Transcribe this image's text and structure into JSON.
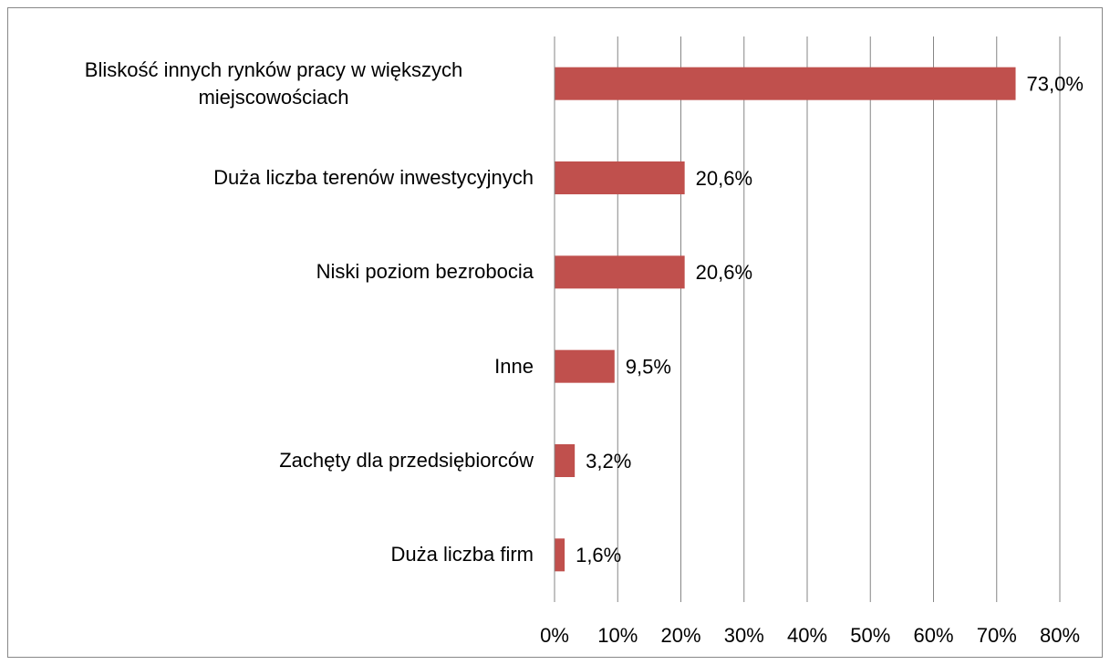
{
  "chart_data": {
    "type": "bar",
    "orientation": "horizontal",
    "categories": [
      "Bliskość innych rynków pracy w większych miejscowościach",
      "Duża liczba terenów inwestycyjnych",
      "Niski poziom bezrobocia",
      "Inne",
      "Zachęty dla przedsiębiorców",
      "Duża liczba firm"
    ],
    "values": [
      73.0,
      20.6,
      20.6,
      9.5,
      3.2,
      1.6
    ],
    "value_labels": [
      "73,0%",
      "20,6%",
      "20,6%",
      "9,5%",
      "3,2%",
      "1,6%"
    ],
    "color": "#c0504d",
    "xlim": [
      0,
      80
    ],
    "xticks": [
      {
        "value": 0,
        "label": "0%"
      },
      {
        "value": 10,
        "label": "10%"
      },
      {
        "value": 20,
        "label": "20%"
      },
      {
        "value": 30,
        "label": "30%"
      },
      {
        "value": 40,
        "label": "40%"
      },
      {
        "value": 50,
        "label": "50%"
      },
      {
        "value": 60,
        "label": "60%"
      },
      {
        "value": 70,
        "label": "70%"
      },
      {
        "value": 80,
        "label": "80%"
      }
    ],
    "grid": true
  }
}
